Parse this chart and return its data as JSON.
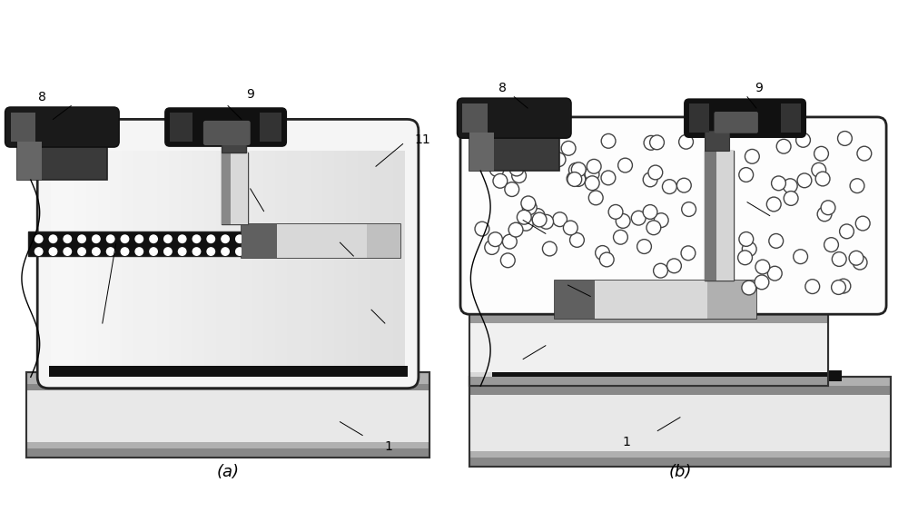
{
  "fig_width": 10.0,
  "fig_height": 5.64,
  "dpi": 100,
  "bg_color": "#ffffff",
  "label_a": "(a)",
  "label_b": "(b)"
}
